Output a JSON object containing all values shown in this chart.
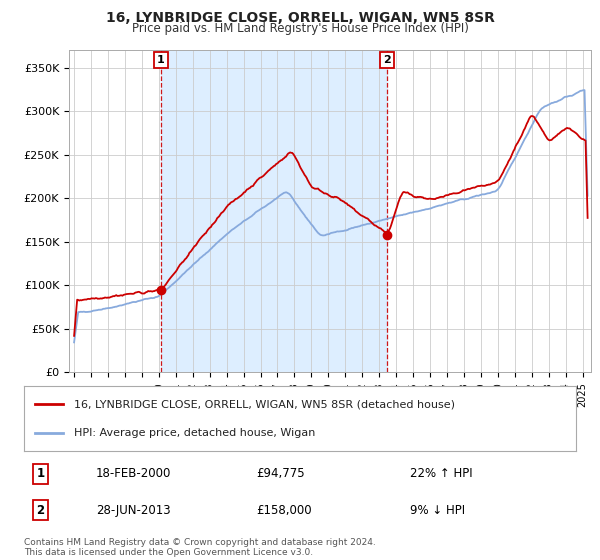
{
  "title": "16, LYNBRIDGE CLOSE, ORRELL, WIGAN, WN5 8SR",
  "subtitle": "Price paid vs. HM Land Registry's House Price Index (HPI)",
  "ylabel_ticks": [
    "£0",
    "£50K",
    "£100K",
    "£150K",
    "£200K",
    "£250K",
    "£300K",
    "£350K"
  ],
  "ytick_vals": [
    0,
    50000,
    100000,
    150000,
    200000,
    250000,
    300000,
    350000
  ],
  "ylim": [
    0,
    370000
  ],
  "xlim_start": 1994.7,
  "xlim_end": 2025.5,
  "line1_color": "#cc0000",
  "line2_color": "#88aadd",
  "shading_color": "#ddeeff",
  "marker1_color": "#cc0000",
  "marker2_color": "#cc0000",
  "transaction1_x": 2000.12,
  "transaction1_y": 94775,
  "transaction2_x": 2013.49,
  "transaction2_y": 158000,
  "legend_line1": "16, LYNBRIDGE CLOSE, ORRELL, WIGAN, WN5 8SR (detached house)",
  "legend_line2": "HPI: Average price, detached house, Wigan",
  "ann1_label": "1",
  "ann2_label": "2",
  "ann1_date": "18-FEB-2000",
  "ann1_price": "£94,775",
  "ann1_hpi": "22% ↑ HPI",
  "ann2_date": "28-JUN-2013",
  "ann2_price": "£158,000",
  "ann2_hpi": "9% ↓ HPI",
  "footer": "Contains HM Land Registry data © Crown copyright and database right 2024.\nThis data is licensed under the Open Government Licence v3.0.",
  "background_color": "#ffffff",
  "grid_color": "#cccccc"
}
